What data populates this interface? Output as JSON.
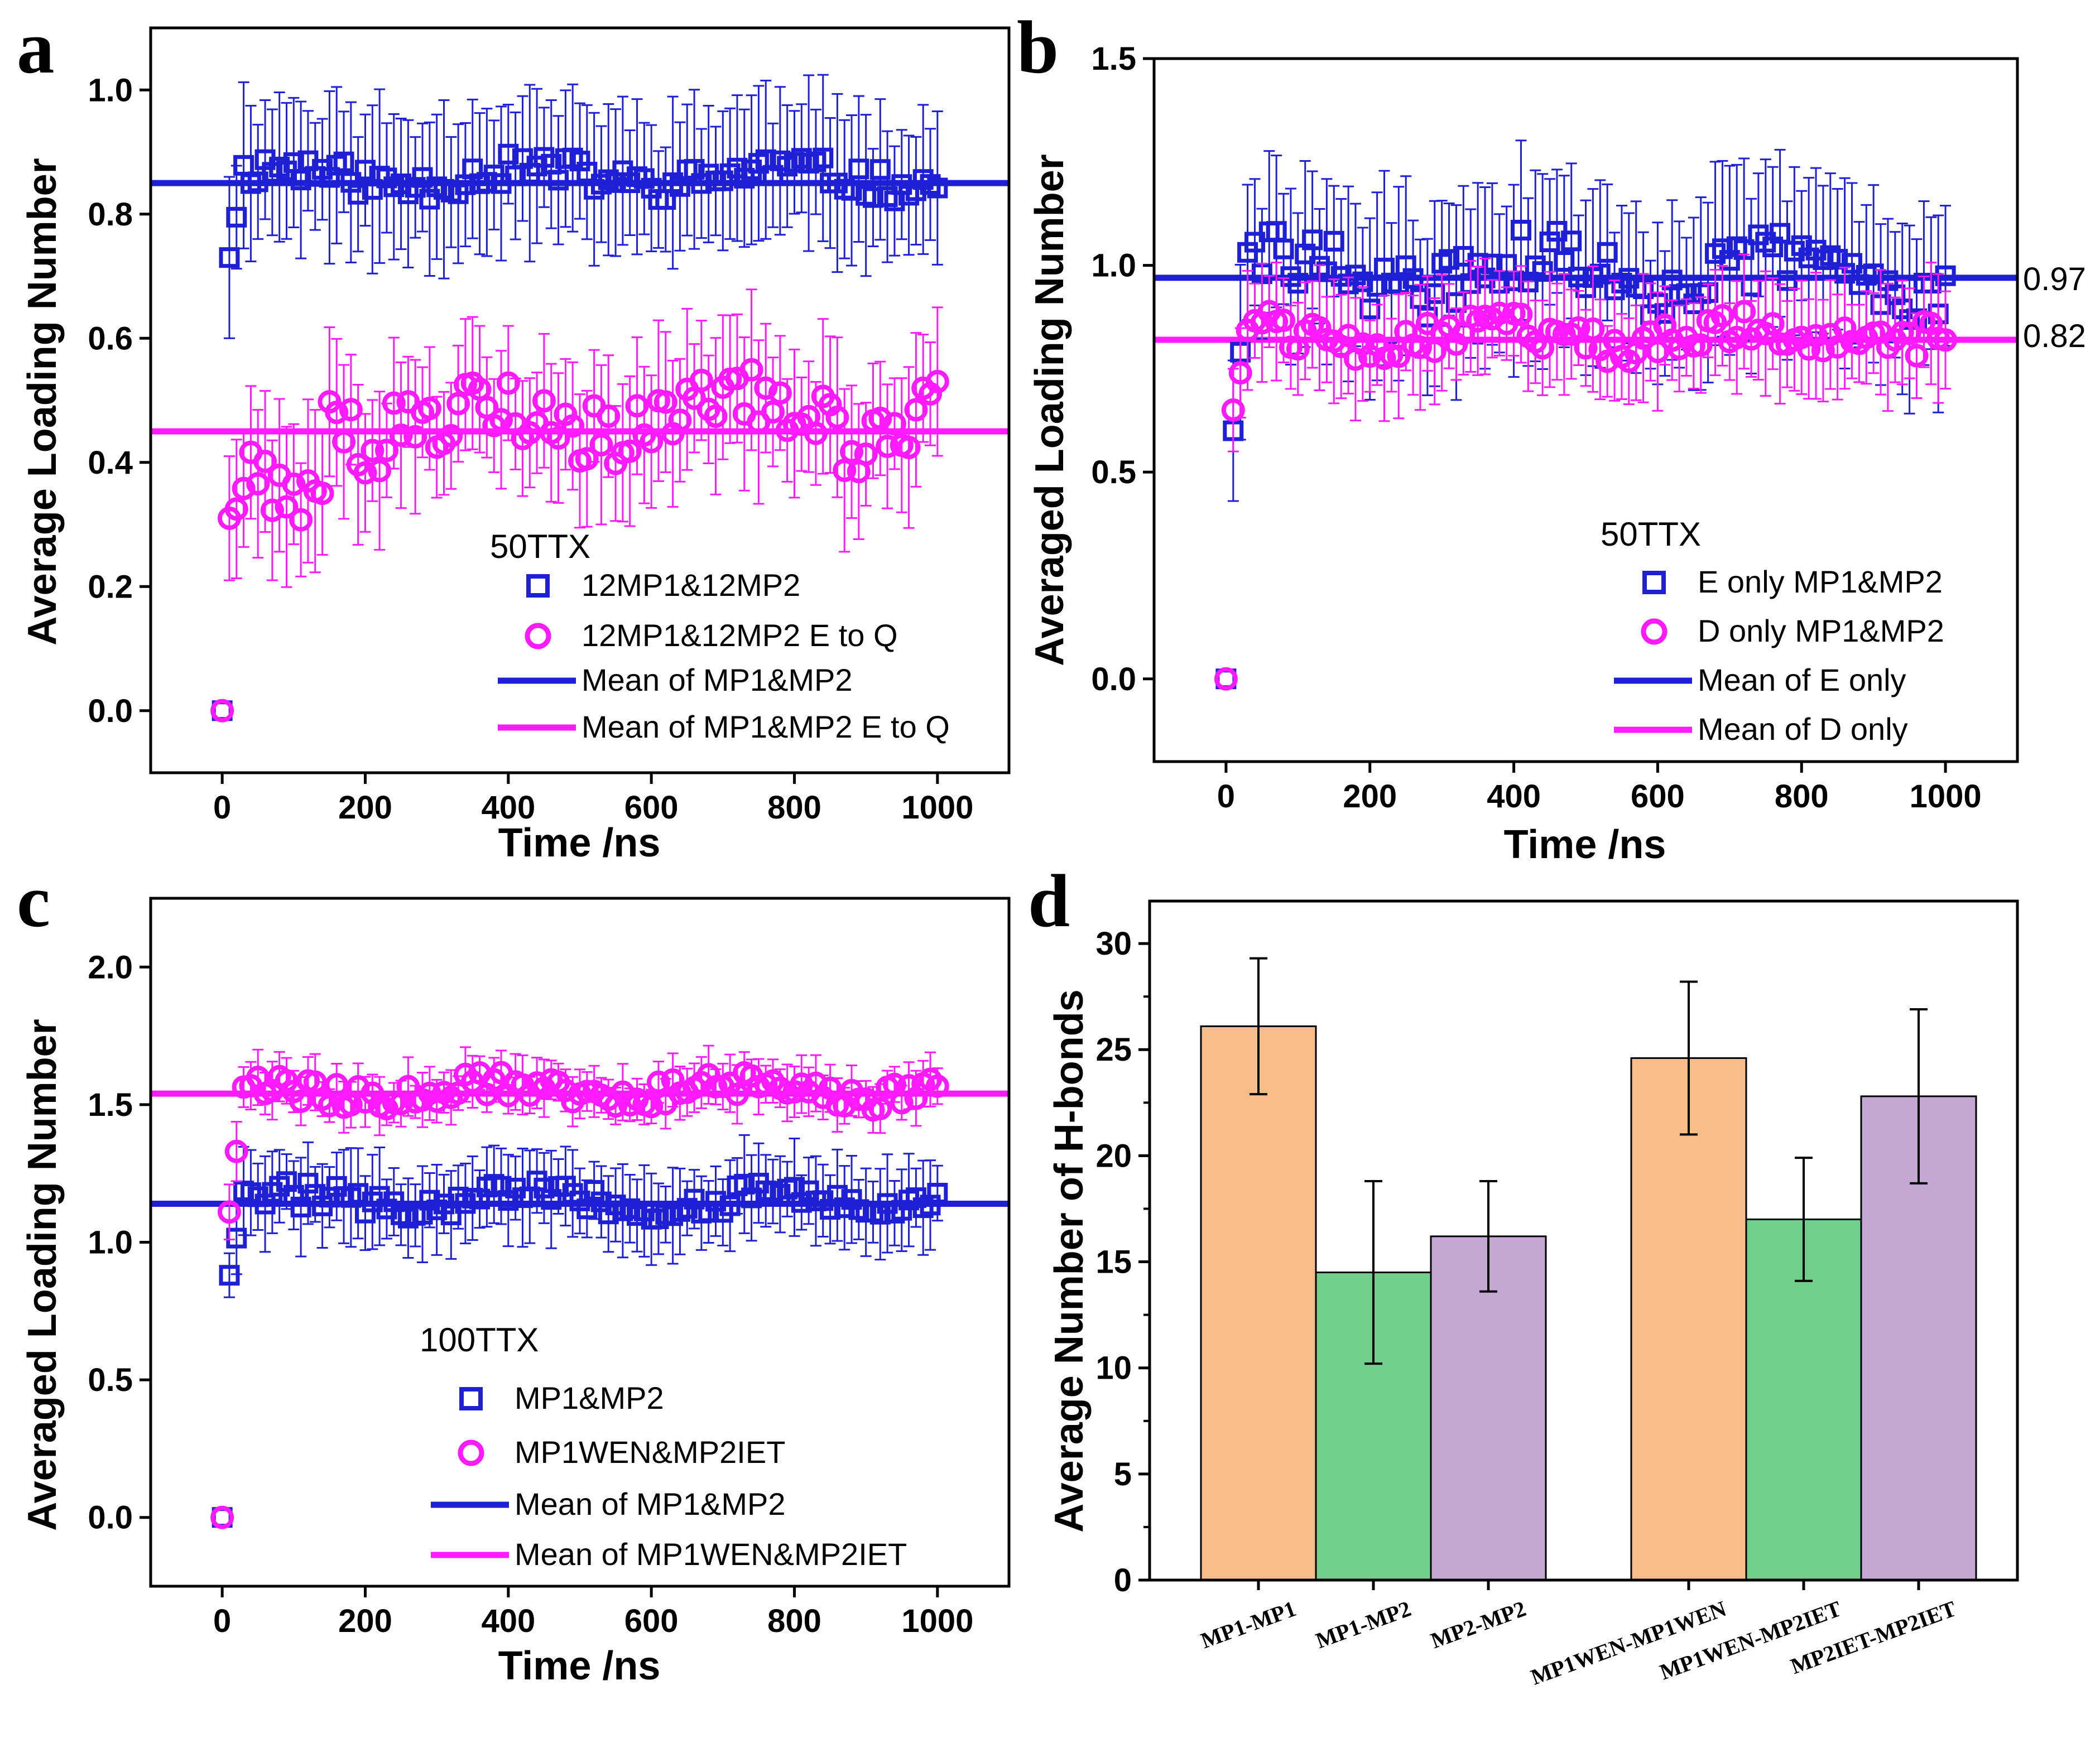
{
  "colors": {
    "blue": "#1f1fd6",
    "magenta": "#ff1aff",
    "orange": "#f9bc8b",
    "green": "#6fd08c",
    "purple": "#c5a7d4",
    "axis": "#000000"
  },
  "chart_data": [
    {
      "panel_label": "a",
      "type": "scatter",
      "xlabel": "Time /ns",
      "ylabel": "Average Loading Number",
      "xlim": [
        -100,
        1100
      ],
      "ylim": [
        -0.1,
        1.1
      ],
      "xticks": [
        "0",
        "200",
        "400",
        "600",
        "800",
        "1000"
      ],
      "yticks": [
        "0.0",
        "0.2",
        "0.4",
        "0.6",
        "0.8",
        "1.0"
      ],
      "legend_title": "50TTX",
      "legend_labels": [
        "12MP1&12MP2",
        "12MP1&12MP2 E to Q",
        "Mean of MP1&MP2",
        "Mean of MP1&MP2 E to Q"
      ],
      "mean_lines": [
        0.85,
        0.45
      ],
      "series": [
        {
          "name": "12MP1&12MP2",
          "marker": "square",
          "start": 0.0,
          "first": 0.73,
          "level": 0.86,
          "amp": 0.025,
          "err": 0.12,
          "err_first": 0.13
        },
        {
          "name": "12MP1&12MP2 E to Q",
          "marker": "circle",
          "start": 0.0,
          "first": 0.31,
          "level": 0.47,
          "amp": 0.055,
          "err": 0.11,
          "err_first": 0.1,
          "early_level": 0.34,
          "early_until": 150
        }
      ]
    },
    {
      "panel_label": "b",
      "type": "scatter",
      "xlabel": "Time /ns",
      "ylabel": "Averaged Loading Number",
      "xlim": [
        -100,
        1100
      ],
      "ylim": [
        -0.2,
        1.5
      ],
      "xticks": [
        "0",
        "200",
        "400",
        "600",
        "800",
        "1000"
      ],
      "yticks": [
        "0.0",
        "0.5",
        "1.0",
        "1.5"
      ],
      "legend_title": "50TTX",
      "legend_labels": [
        "E only MP1&MP2",
        "D only MP1&MP2",
        "Mean of E only",
        "Mean of D only"
      ],
      "mean_lines": [
        0.97,
        0.82
      ],
      "mean_labels": [
        "0.97",
        "0.82"
      ],
      "series": [
        {
          "name": "E only MP1&MP2",
          "marker": "square",
          "start": 0.0,
          "first": 0.6,
          "level": 0.98,
          "amp": 0.07,
          "err": 0.2,
          "err_first": 0.17
        },
        {
          "name": "D only MP1&MP2",
          "marker": "circle",
          "start": 0.0,
          "first": 0.65,
          "level": 0.83,
          "amp": 0.04,
          "err": 0.13,
          "err_first": 0.1
        }
      ]
    },
    {
      "panel_label": "c",
      "type": "scatter",
      "xlabel": "Time /ns",
      "ylabel": "Averaged Loading Number",
      "xlim": [
        -100,
        1100
      ],
      "ylim": [
        -0.25,
        2.25
      ],
      "xticks": [
        "0",
        "200",
        "400",
        "600",
        "800",
        "1000"
      ],
      "yticks": [
        "0.0",
        "0.5",
        "1.0",
        "1.5",
        "2.0"
      ],
      "legend_title": "100TTX",
      "legend_labels": [
        "MP1&MP2",
        "MP1WEN&MP2IET",
        "Mean of MP1&MP2",
        "Mean of MP1WEN&MP2IET"
      ],
      "mean_lines": [
        1.14,
        1.54
      ],
      "series": [
        {
          "name": "MP1&MP2",
          "marker": "square",
          "start": 0.0,
          "first": 0.88,
          "level": 1.15,
          "amp": 0.05,
          "err": 0.15,
          "err_first": 0.08
        },
        {
          "name": "MP1WEN&MP2IET",
          "marker": "circle",
          "start": 0.0,
          "first": 1.11,
          "level": 1.55,
          "amp": 0.045,
          "err": 0.09,
          "err_first": 0.1
        }
      ]
    },
    {
      "panel_label": "d",
      "type": "bar",
      "xlabel": "",
      "ylabel": "Average Number of H-bonds",
      "ylim": [
        0,
        32
      ],
      "yticks": [
        "0",
        "5",
        "10",
        "15",
        "20",
        "25",
        "30"
      ],
      "categories": [
        "MP1-MP1",
        "MP1-MP2",
        "MP2-MP2",
        "MP1WEN-MP1WEN",
        "MP1WEN-MP2IET",
        "MP2IET-MP2IET"
      ],
      "values": [
        26.1,
        14.5,
        16.2,
        24.6,
        17.0,
        22.8
      ],
      "errors": [
        3.2,
        4.3,
        2.6,
        3.6,
        2.9,
        4.1
      ],
      "bar_colors": [
        "orange",
        "green",
        "purple",
        "orange",
        "green",
        "purple"
      ]
    }
  ]
}
